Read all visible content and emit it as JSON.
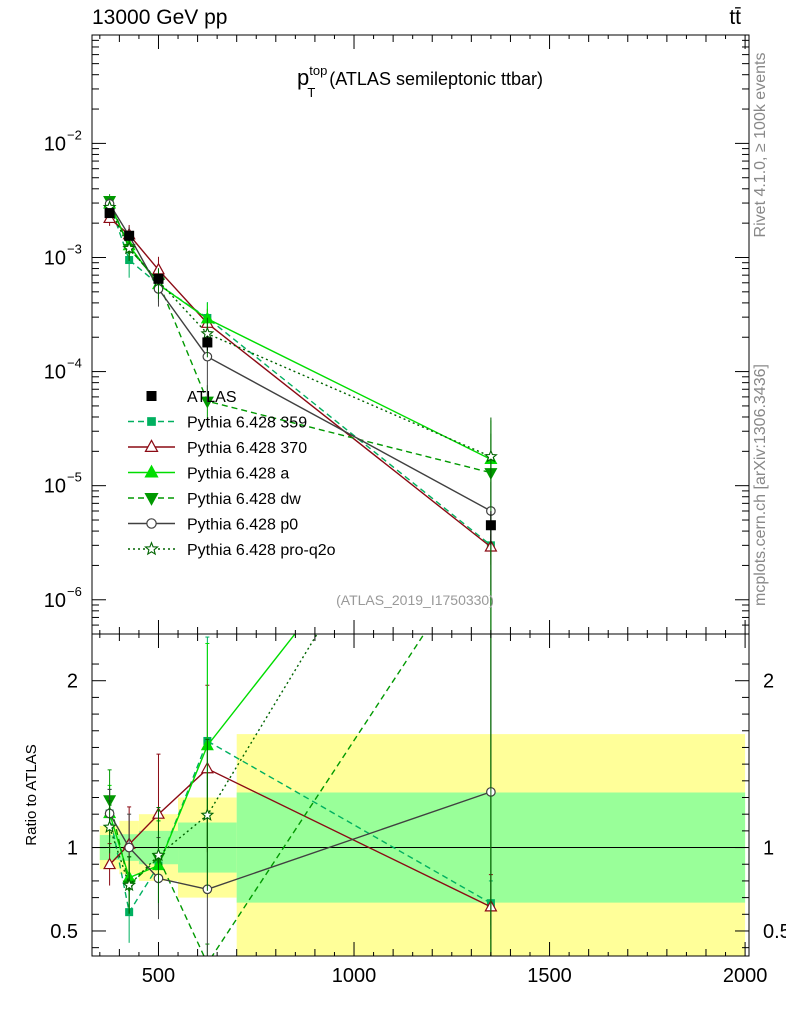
{
  "header": {
    "left": "13000 GeV pp",
    "right": "tt̄"
  },
  "side_labels": {
    "rivet": "Rivet 4.1.0, ≥ 100k events",
    "mcplots": "mcplots.cern.ch [arXiv:1306.3436]"
  },
  "chart_data": {
    "type": "line",
    "title_main": "p",
    "title_sup": "top",
    "title_sub": "T",
    "title_rest": "(ATLAS semileptonic ttbar)",
    "analysis_id": "(ATLAS_2019_I1750330)",
    "xlabel": "",
    "ylabel_ratio": "Ratio to ATLAS",
    "xlim": [
      330,
      2010
    ],
    "ylim_main_log10": [
      -6.3,
      -1.05
    ],
    "ylim_ratio": [
      0.35,
      2.28
    ],
    "x_ticks": [
      {
        "v": 500,
        "label": "500"
      },
      {
        "v": 1000,
        "label": "1000"
      },
      {
        "v": 1500,
        "label": "1500"
      },
      {
        "v": 2000,
        "label": "2000"
      }
    ],
    "y_ticks_main": [
      {
        "exp": -2,
        "label": "10",
        "sup": "−2"
      },
      {
        "exp": -3,
        "label": "10",
        "sup": "−3"
      },
      {
        "exp": -4,
        "label": "10",
        "sup": "−4"
      },
      {
        "exp": -5,
        "label": "10",
        "sup": "−5"
      },
      {
        "exp": -6,
        "label": "10",
        "sup": "−6"
      }
    ],
    "y_ticks_ratio": [
      {
        "v": 0.5,
        "label": "0.5"
      },
      {
        "v": 1,
        "label": "1"
      },
      {
        "v": 2,
        "label": "2"
      }
    ],
    "x": [
      375,
      425,
      500,
      625,
      1350
    ],
    "bins": [
      [
        350,
        400
      ],
      [
        400,
        450
      ],
      [
        450,
        550
      ],
      [
        550,
        700
      ],
      [
        700,
        2000
      ]
    ],
    "band_inner": [
      0.075,
      0.08,
      0.1,
      0.15,
      0.33
    ],
    "band_outer": [
      0.13,
      0.16,
      0.2,
      0.3,
      0.68
    ],
    "data": {
      "name": "ATLAS",
      "values": [
        0.00245,
        0.00155,
        0.00065,
        0.00018,
        4.5e-06
      ]
    },
    "series": [
      {
        "name": "Pythia 6.428 359",
        "values": [
          0.00295,
          0.00095,
          0.00058,
          0.000295,
          3e-06
        ],
        "ratio_err": [
          0.12,
          0.3,
          0.3,
          0.38,
          0.2
        ]
      },
      {
        "name": "Pythia 6.428 370",
        "values": [
          0.0022,
          0.00158,
          0.00078,
          0.000265,
          2.9e-06
        ],
        "ratio_err": [
          0.14,
          0.22,
          0.3,
          0.34,
          0.3
        ]
      },
      {
        "name": "Pythia 6.428 a",
        "values": [
          0.00295,
          0.00127,
          0.00058,
          0.00029,
          1.7e-05
        ],
        "ratio_err": [
          0.14,
          0.22,
          0.3,
          0.38,
          1.2
        ]
      },
      {
        "name": "Pythia 6.428 dw",
        "values": [
          0.00315,
          0.0012,
          0.00061,
          5.5e-05,
          1.3e-05
        ],
        "ratio_err": [
          0.14,
          0.22,
          0.3,
          0.38,
          1.2
        ]
      },
      {
        "name": "Pythia 6.428 p0",
        "values": [
          0.00295,
          0.00155,
          0.00053,
          0.000135,
          6e-06
        ],
        "ratio_err": [
          0.12,
          0.2,
          0.3,
          0.6,
          0.8
        ]
      },
      {
        "name": "Pythia 6.428 pro-q2o",
        "values": [
          0.00275,
          0.0012,
          0.00062,
          0.000215,
          1.8e-05
        ],
        "ratio_err": [
          0.14,
          0.22,
          0.3,
          0.38,
          1.2
        ]
      }
    ]
  }
}
